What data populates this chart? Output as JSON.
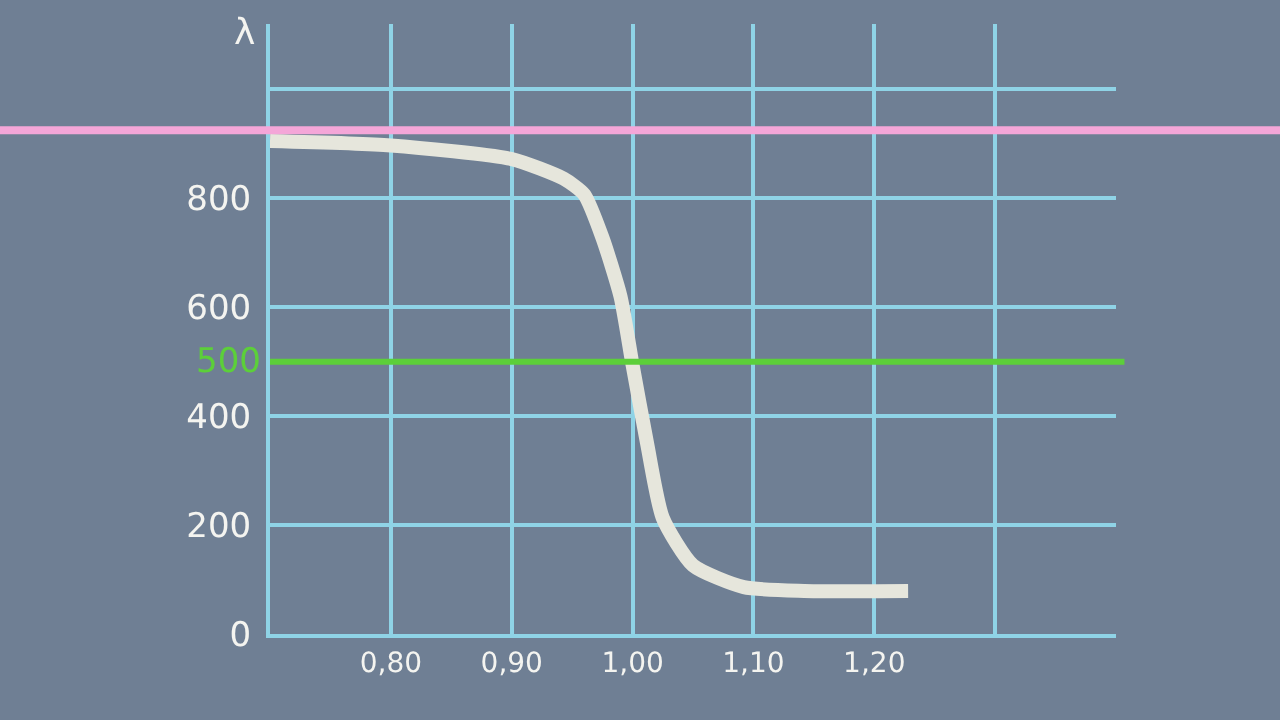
{
  "chart_data": {
    "type": "line",
    "ylabel": "λ",
    "x": [
      0.7,
      0.8,
      0.9,
      0.943,
      0.96,
      0.975,
      0.99,
      1.0,
      1.012,
      1.025,
      1.05,
      1.092,
      1.142,
      1.228
    ],
    "series": [
      {
        "color": "#e6e6dc",
        "values": [
          905,
          897,
          872,
          836,
          807,
          728,
          620,
          494,
          350,
          213,
          126,
          86,
          79,
          79
        ]
      }
    ],
    "xlim": [
      0.7,
      1.4
    ],
    "xticks": [
      {
        "value": 0.7,
        "label": null
      },
      {
        "value": 0.8,
        "label": "0,80"
      },
      {
        "value": 0.9,
        "label": "0,90"
      },
      {
        "value": 1.0,
        "label": "1,00"
      },
      {
        "value": 1.1,
        "label": "1,10"
      },
      {
        "value": 1.2,
        "label": "1,20"
      },
      {
        "value": 1.3,
        "label": null
      }
    ],
    "ylim": [
      0,
      1120
    ],
    "yticks": [
      0,
      200,
      400,
      600,
      800,
      {
        "value": 1000,
        "label": null
      }
    ],
    "ref_lines": [
      {
        "axis": "y",
        "value": 925,
        "color": "#f4a6d8"
      },
      {
        "axis": "y",
        "value": 500,
        "label": "500",
        "color": "#5ccf3a"
      }
    ],
    "grid": true,
    "marker": "none",
    "line_style": "solid"
  }
}
